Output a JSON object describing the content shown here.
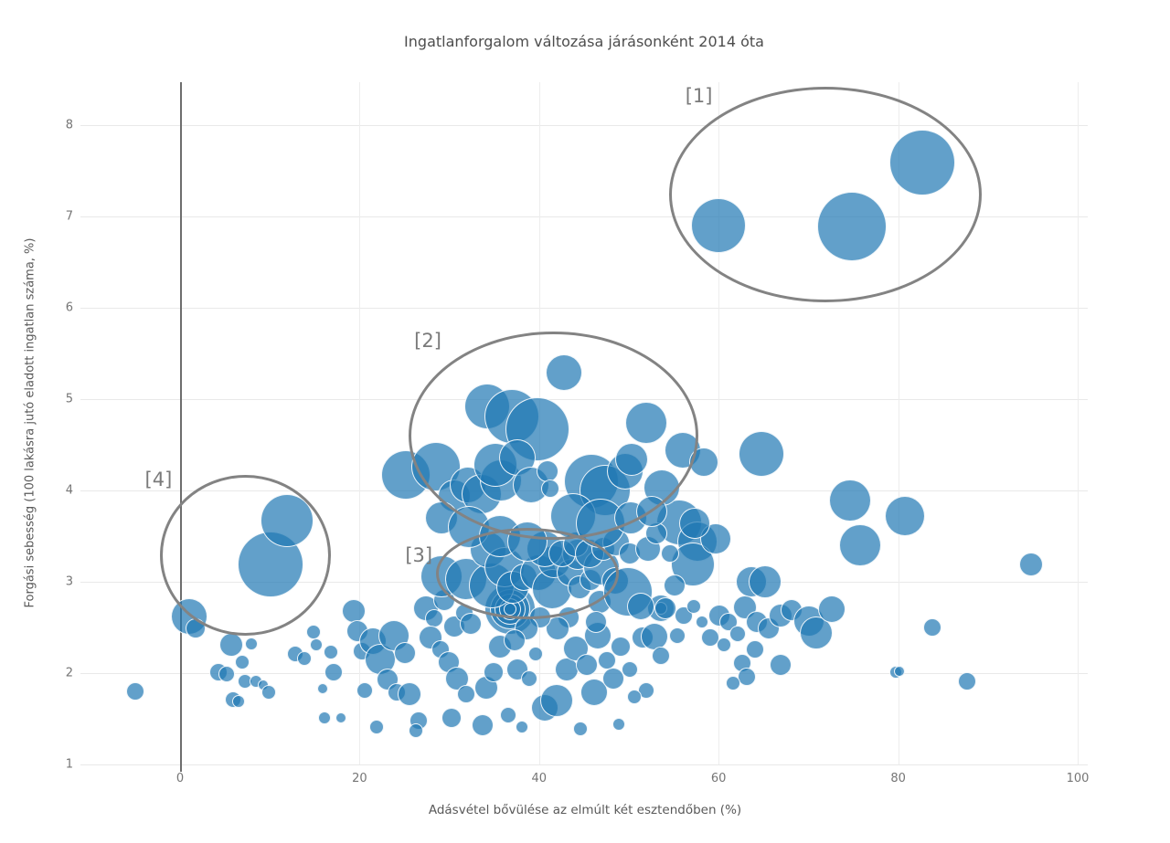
{
  "title": "Ingatlanforgalom változása járásonként 2014 óta",
  "axes": {
    "x": {
      "label": "Adásvétel bővülése az elmúlt két esztendőben (%)"
    },
    "y": {
      "label": "Forgási sebesség (100 lakásra jutó eladott ingatlan száma, %)"
    }
  },
  "colors": {
    "bubble_fill": "#1f77b4",
    "bubble_opacity": 0.7,
    "bubble_stroke": "#ffffff",
    "grid": "#ededed",
    "zero_line": "#6e6e6e",
    "annotation": "#7a7a7a",
    "tick_text": "#757575",
    "title_text": "#4d4d4d"
  },
  "chart_data": {
    "type": "scatter",
    "subtype": "bubble",
    "title": "Ingatlanforgalom változása járásonként 2014 óta",
    "xlabel": "Adásvétel bővülése az elmúlt két esztendőben (%)",
    "ylabel": "Forgási sebesség (100 lakásra jutó eladott ingatlan száma, %)",
    "x_ticks": [
      0,
      20,
      40,
      60,
      80,
      100
    ],
    "y_ticks": [
      1,
      2,
      3,
      4,
      5,
      6,
      7,
      8
    ],
    "xlim": [
      -11.1,
      101.1
    ],
    "ylim": [
      1,
      8.47
    ],
    "grid": true,
    "legend": false,
    "points_format": [
      "x_percent",
      "y_rate",
      "radius_px"
    ],
    "points": [
      [
        -5.0,
        1.8,
        10
      ],
      [
        1.0,
        2.62,
        20
      ],
      [
        1.7,
        2.49,
        11
      ],
      [
        4.3,
        2.01,
        10
      ],
      [
        5.2,
        1.99,
        9
      ],
      [
        5.7,
        2.31,
        13
      ],
      [
        6.9,
        2.12,
        8
      ],
      [
        5.9,
        1.71,
        9
      ],
      [
        6.5,
        1.69,
        7
      ],
      [
        7.9,
        2.32,
        7
      ],
      [
        7.2,
        1.91,
        8
      ],
      [
        8.5,
        1.91,
        7
      ],
      [
        9.3,
        1.87,
        6
      ],
      [
        9.9,
        1.79,
        8
      ],
      [
        10.1,
        3.19,
        36
      ],
      [
        11.9,
        3.67,
        29
      ],
      [
        12.8,
        2.21,
        9
      ],
      [
        13.8,
        2.16,
        8
      ],
      [
        14.9,
        2.45,
        8
      ],
      [
        15.2,
        2.31,
        7
      ],
      [
        16.8,
        2.23,
        8
      ],
      [
        17.1,
        2.01,
        10
      ],
      [
        15.9,
        1.83,
        6
      ],
      [
        16.1,
        1.51,
        7
      ],
      [
        17.9,
        1.51,
        6
      ],
      [
        19.3,
        2.68,
        13
      ],
      [
        19.8,
        2.46,
        12
      ],
      [
        20.3,
        2.24,
        10
      ],
      [
        20.6,
        1.81,
        9
      ],
      [
        21.9,
        1.41,
        8
      ],
      [
        21.5,
        2.35,
        15
      ],
      [
        22.3,
        2.15,
        17
      ],
      [
        23.8,
        2.41,
        17
      ],
      [
        25.0,
        2.22,
        12
      ],
      [
        23.1,
        1.93,
        12
      ],
      [
        24.1,
        1.79,
        10
      ],
      [
        25.6,
        1.77,
        13
      ],
      [
        26.6,
        1.48,
        10
      ],
      [
        26.3,
        1.37,
        8
      ],
      [
        27.4,
        2.71,
        14
      ],
      [
        28.3,
        2.6,
        10
      ],
      [
        29.4,
        2.8,
        12
      ],
      [
        27.9,
        2.39,
        13
      ],
      [
        29.0,
        2.26,
        10
      ],
      [
        29.9,
        2.12,
        12
      ],
      [
        30.6,
        2.51,
        12
      ],
      [
        31.7,
        2.66,
        10
      ],
      [
        32.4,
        2.54,
        12
      ],
      [
        30.9,
        1.94,
        13
      ],
      [
        31.9,
        1.77,
        10
      ],
      [
        30.2,
        1.51,
        11
      ],
      [
        33.7,
        1.43,
        12
      ],
      [
        34.1,
        1.84,
        13
      ],
      [
        34.9,
        2.01,
        11
      ],
      [
        35.6,
        2.29,
        13
      ],
      [
        36.6,
        1.54,
        9
      ],
      [
        38.1,
        1.41,
        7
      ],
      [
        37.6,
        2.04,
        12
      ],
      [
        38.9,
        1.94,
        9
      ],
      [
        39.6,
        2.21,
        8
      ],
      [
        40.6,
        1.62,
        15
      ],
      [
        42.0,
        1.7,
        18
      ],
      [
        43.1,
        2.04,
        13
      ],
      [
        44.1,
        2.27,
        14
      ],
      [
        45.3,
        2.09,
        12
      ],
      [
        46.1,
        1.79,
        15
      ],
      [
        46.5,
        2.41,
        15
      ],
      [
        47.6,
        2.14,
        10
      ],
      [
        48.3,
        1.94,
        12
      ],
      [
        49.1,
        2.29,
        11
      ],
      [
        50.1,
        2.04,
        9
      ],
      [
        51.5,
        2.39,
        12
      ],
      [
        52.9,
        2.4,
        15
      ],
      [
        51.9,
        1.81,
        9
      ],
      [
        53.6,
        2.19,
        10
      ],
      [
        48.9,
        1.44,
        7
      ],
      [
        44.6,
        1.39,
        8
      ],
      [
        50.6,
        1.74,
        8
      ],
      [
        36.8,
        2.7,
        28
      ],
      [
        36.8,
        2.7,
        22
      ],
      [
        36.8,
        2.7,
        17
      ],
      [
        36.8,
        2.7,
        12
      ],
      [
        36.8,
        2.7,
        7
      ],
      [
        53.6,
        2.71,
        15
      ],
      [
        53.6,
        2.71,
        7
      ],
      [
        29.1,
        3.06,
        23
      ],
      [
        31.9,
        3.03,
        23
      ],
      [
        34.7,
        2.96,
        25
      ],
      [
        34.3,
        3.35,
        20
      ],
      [
        36.1,
        3.16,
        22
      ],
      [
        37.1,
        2.94,
        18
      ],
      [
        38.3,
        3.05,
        15
      ],
      [
        39.9,
        3.1,
        20
      ],
      [
        41.4,
        2.92,
        22
      ],
      [
        41.6,
        3.22,
        18
      ],
      [
        43.5,
        3.1,
        15
      ],
      [
        44.5,
        2.94,
        13
      ],
      [
        45.7,
        3.02,
        12
      ],
      [
        44.3,
        3.3,
        17
      ],
      [
        46.9,
        3.16,
        20
      ],
      [
        48.5,
        3.01,
        15
      ],
      [
        46.7,
        2.78,
        13
      ],
      [
        49.9,
        2.89,
        27
      ],
      [
        51.3,
        2.73,
        15
      ],
      [
        46.3,
        2.56,
        12
      ],
      [
        43.3,
        2.61,
        12
      ],
      [
        42.1,
        2.49,
        13
      ],
      [
        40.1,
        2.61,
        12
      ],
      [
        38.6,
        2.49,
        13
      ],
      [
        37.3,
        2.36,
        12
      ],
      [
        55.6,
        3.65,
        25
      ],
      [
        57.6,
        3.44,
        22
      ],
      [
        57.1,
        3.19,
        24
      ],
      [
        59.7,
        3.47,
        17
      ],
      [
        55.1,
        2.96,
        12
      ],
      [
        54.1,
        2.71,
        12
      ],
      [
        56.1,
        2.63,
        10
      ],
      [
        55.4,
        2.41,
        9
      ],
      [
        57.2,
        2.73,
        8
      ],
      [
        58.1,
        2.56,
        7
      ],
      [
        59.1,
        2.39,
        10
      ],
      [
        60.1,
        2.63,
        12
      ],
      [
        61.1,
        2.56,
        10
      ],
      [
        60.6,
        2.31,
        8
      ],
      [
        62.1,
        2.43,
        9
      ],
      [
        40.6,
        3.36,
        20
      ],
      [
        42.6,
        3.31,
        15
      ],
      [
        44.1,
        3.41,
        14
      ],
      [
        45.6,
        3.31,
        16
      ],
      [
        47.1,
        3.36,
        13
      ],
      [
        48.6,
        3.43,
        15
      ],
      [
        50.1,
        3.31,
        12
      ],
      [
        52.1,
        3.36,
        14
      ],
      [
        53.1,
        3.53,
        12
      ],
      [
        54.6,
        3.31,
        10
      ],
      [
        25.2,
        4.17,
        27
      ],
      [
        28.5,
        4.26,
        27
      ],
      [
        30.5,
        3.94,
        18
      ],
      [
        32.1,
        4.06,
        20
      ],
      [
        33.6,
        3.96,
        22
      ],
      [
        35.7,
        4.11,
        23
      ],
      [
        34.2,
        4.92,
        25
      ],
      [
        37.0,
        4.81,
        30
      ],
      [
        39.8,
        4.67,
        35
      ],
      [
        35.1,
        4.28,
        24
      ],
      [
        37.6,
        4.36,
        20
      ],
      [
        39.1,
        4.06,
        20
      ],
      [
        40.9,
        4.21,
        12
      ],
      [
        41.2,
        4.02,
        10
      ],
      [
        42.8,
        5.29,
        20
      ],
      [
        45.8,
        4.1,
        30
      ],
      [
        47.4,
        4.0,
        28
      ],
      [
        49.6,
        4.21,
        20
      ],
      [
        50.3,
        4.34,
        18
      ],
      [
        51.9,
        4.74,
        23
      ],
      [
        53.7,
        4.03,
        20
      ],
      [
        56.0,
        4.44,
        20
      ],
      [
        58.4,
        4.31,
        16
      ],
      [
        43.8,
        3.72,
        25
      ],
      [
        46.8,
        3.64,
        27
      ],
      [
        50.2,
        3.7,
        18
      ],
      [
        52.5,
        3.77,
        17
      ],
      [
        29.1,
        3.7,
        18
      ],
      [
        32.2,
        3.6,
        23
      ],
      [
        35.6,
        3.5,
        23
      ],
      [
        38.7,
        3.44,
        22
      ],
      [
        57.3,
        3.64,
        17
      ],
      [
        64.8,
        4.4,
        25
      ],
      [
        74.6,
        3.89,
        23
      ],
      [
        80.8,
        3.72,
        22
      ],
      [
        75.8,
        3.4,
        23
      ],
      [
        94.8,
        3.19,
        13
      ],
      [
        63.6,
        3.0,
        17
      ],
      [
        65.2,
        3.0,
        18
      ],
      [
        62.9,
        2.72,
        13
      ],
      [
        64.3,
        2.56,
        12
      ],
      [
        65.6,
        2.49,
        12
      ],
      [
        66.9,
        2.63,
        13
      ],
      [
        68.1,
        2.69,
        12
      ],
      [
        70.1,
        2.57,
        17
      ],
      [
        70.9,
        2.44,
        18
      ],
      [
        72.6,
        2.7,
        15
      ],
      [
        66.9,
        2.09,
        12
      ],
      [
        64.1,
        2.26,
        10
      ],
      [
        62.6,
        2.11,
        10
      ],
      [
        63.1,
        1.96,
        10
      ],
      [
        61.6,
        1.89,
        8
      ],
      [
        79.7,
        2.01,
        7
      ],
      [
        83.8,
        2.5,
        10
      ],
      [
        87.7,
        1.91,
        10
      ],
      [
        80.1,
        2.02,
        6
      ],
      [
        60.0,
        6.9,
        30
      ],
      [
        74.8,
        6.89,
        38
      ],
      [
        82.7,
        7.59,
        36
      ]
    ],
    "annotations": [
      {
        "label": "[1]",
        "x": 57.8,
        "y": 8.32
      },
      {
        "label": "[2]",
        "x": 27.6,
        "y": 5.64
      },
      {
        "label": "[3]",
        "x": 26.6,
        "y": 3.29
      },
      {
        "label": "[4]",
        "x": -2.4,
        "y": 4.12
      }
    ],
    "ellipses": [
      {
        "cx": 71.9,
        "cy": 7.24,
        "rx": 17.4,
        "ry": 1.18
      },
      {
        "cx": 41.6,
        "cy": 4.6,
        "rx": 16.1,
        "ry": 1.14
      },
      {
        "cx": 38.7,
        "cy": 3.09,
        "rx": 10.2,
        "ry": 0.5
      },
      {
        "cx": 7.3,
        "cy": 3.29,
        "rx": 9.5,
        "ry": 0.88
      }
    ]
  }
}
